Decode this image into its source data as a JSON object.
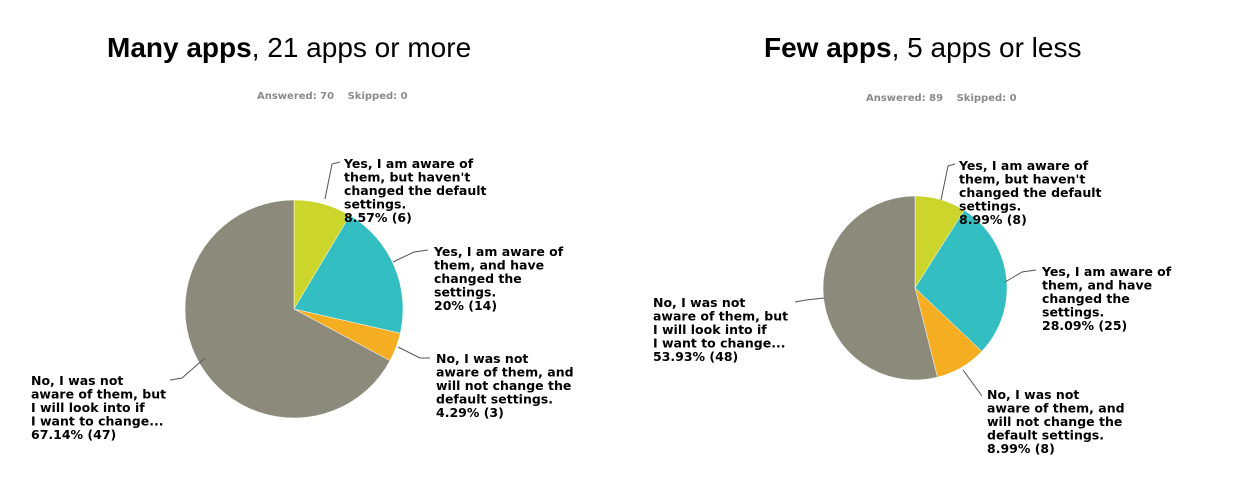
{
  "panels": [
    {
      "heading_bold": "Many apps",
      "heading_rest": ", 21 apps or more",
      "answered": "Answered: 70",
      "skipped": "Skipped: 0"
    },
    {
      "heading_bold": "Few apps",
      "heading_rest": ", 5 apps or less",
      "answered": "Answered: 89",
      "skipped": "Skipped: 0"
    }
  ],
  "chart_data": [
    {
      "type": "pie",
      "title": "Many apps, 21 apps or more",
      "slices": [
        {
          "label": [
            "Yes, I am aware of",
            "them, but haven't",
            "changed the default",
            "settings.",
            "8.57% (6)"
          ],
          "percent": 8.57,
          "count": 6,
          "color": "#ccd52b"
        },
        {
          "label": [
            "Yes, I am aware of",
            "them, and have",
            "changed the",
            "settings.",
            "20% (14)"
          ],
          "percent": 20.0,
          "count": 14,
          "color": "#33bec1"
        },
        {
          "label": [
            "No, I was not",
            "aware of them, and",
            "will not change the",
            "default settings.",
            "4.29% (3)"
          ],
          "percent": 4.29,
          "count": 3,
          "color": "#f5ad22"
        },
        {
          "label": [
            "No, I was not",
            "aware of them, but",
            "I will look into if",
            "I want to change...",
            "67.14% (47)"
          ],
          "percent": 67.14,
          "count": 47,
          "color": "#8b8a7b"
        }
      ]
    },
    {
      "type": "pie",
      "title": "Few apps, 5 apps or less",
      "slices": [
        {
          "label": [
            "Yes, I am aware of",
            "them, but haven't",
            "changed the default",
            "settings.",
            "8.99% (8)"
          ],
          "percent": 8.99,
          "count": 8,
          "color": "#ccd52b"
        },
        {
          "label": [
            "Yes, I am aware of",
            "them, and have",
            "changed the",
            "settings.",
            "28.09% (25)"
          ],
          "percent": 28.09,
          "count": 25,
          "color": "#33bec1"
        },
        {
          "label": [
            "No, I was not",
            "aware of them, and",
            "will not change the",
            "default settings.",
            "8.99% (8)"
          ],
          "percent": 8.99,
          "count": 8,
          "color": "#f5ad22"
        },
        {
          "label": [
            "No, I was not",
            "aware of them, but",
            "I will look into if",
            "I want to change...",
            "53.93% (48)"
          ],
          "percent": 53.93,
          "count": 48,
          "color": "#8b8a7b"
        }
      ]
    }
  ]
}
